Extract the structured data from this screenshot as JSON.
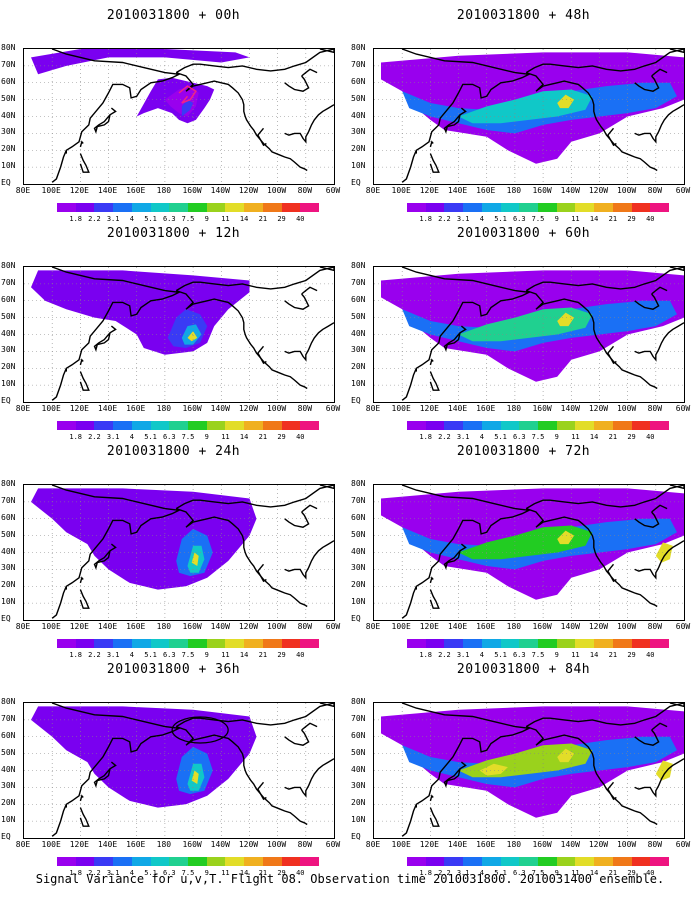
{
  "panels": [
    {
      "title": "2010031800 + 00h",
      "level": 0
    },
    {
      "title": "2010031800 + 48h",
      "level": 3
    },
    {
      "title": "2010031800 + 12h",
      "level": 1
    },
    {
      "title": "2010031800 + 60h",
      "level": 4
    },
    {
      "title": "2010031800 + 24h",
      "level": 2
    },
    {
      "title": "2010031800 + 72h",
      "level": 5
    },
    {
      "title": "2010031800 + 36h",
      "level": 2
    },
    {
      "title": "2010031800 + 84h",
      "level": 6
    }
  ],
  "y_labels": [
    "80N",
    "70N",
    "60N",
    "50N",
    "40N",
    "30N",
    "20N",
    "10N",
    "EQ"
  ],
  "x_labels": [
    "80E",
    "100E",
    "120E",
    "140E",
    "160E",
    "180",
    "160W",
    "140W",
    "120W",
    "100W",
    "80W",
    "60W"
  ],
  "colorbar": {
    "labels": [
      "1.8",
      "2.2",
      "3.1",
      "4",
      "5.1",
      "6.3",
      "7.5",
      "9",
      "11",
      "14",
      "21",
      "29",
      "40"
    ],
    "colors": [
      "#9900ee",
      "#7a00f0",
      "#3a3af5",
      "#1a70f5",
      "#10a8e6",
      "#10c8c8",
      "#20d090",
      "#22cc22",
      "#9ad21c",
      "#e2dd28",
      "#f0b020",
      "#f07818",
      "#f03020",
      "#ee1480"
    ]
  },
  "caption": "Signal Variance for u,v,T. Flight 08. Observation time 2010031800. 2010031400 ensemble."
}
